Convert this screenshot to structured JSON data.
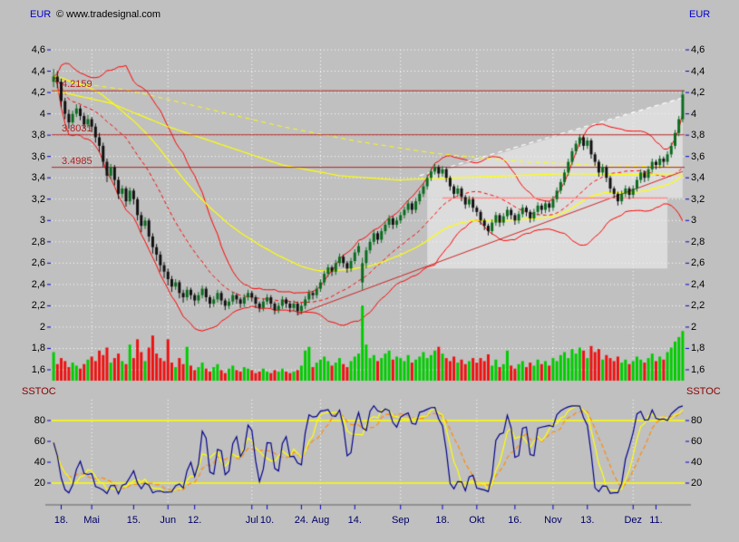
{
  "header": {
    "left_axis_title": "EUR",
    "copyright": "© www.tradesignal.com",
    "right_axis_title": "EUR"
  },
  "stoch_panel": {
    "left_title": "SSTOC",
    "right_title": "SSTOC"
  },
  "colors": {
    "background": "#c0c0c0",
    "grid": "#ffffff",
    "candle_up": "#0a6b1e",
    "candle_down": "#101010",
    "volume_up": "#00cc00",
    "volume_down": "#ee1111",
    "bollinger": "#ff0000",
    "ma_yellow": "#ffff00",
    "level": "#b22222",
    "level_label": "#b22222",
    "trendline": "#cc2222",
    "channel": "#ff8888",
    "stoch_k": "#00008b",
    "stoch_slow": "#ff8c00",
    "axis_text": "#000066",
    "axis_tick": "#0000cc",
    "text": "#000000",
    "zone": "rgba(235,235,235,0.65)"
  },
  "chart_data": {
    "type": "candlestick",
    "currency": "EUR",
    "price_axis": {
      "min": 1.6,
      "max": 4.6,
      "ticks": [
        {
          "v": 4.6,
          "label": "4,6"
        },
        {
          "v": 4.4,
          "label": "4,4"
        },
        {
          "v": 4.2,
          "label": "4,2"
        },
        {
          "v": 4.0,
          "label": "4"
        },
        {
          "v": 3.8,
          "label": "3,8"
        },
        {
          "v": 3.6,
          "label": "3,6"
        },
        {
          "v": 3.4,
          "label": "3,4"
        },
        {
          "v": 3.2,
          "label": "3,2"
        },
        {
          "v": 3.0,
          "label": "3"
        },
        {
          "v": 2.8,
          "label": "2,8"
        },
        {
          "v": 2.6,
          "label": "2,6"
        },
        {
          "v": 2.4,
          "label": "2,4"
        },
        {
          "v": 2.2,
          "label": "2,2"
        },
        {
          "v": 2.0,
          "label": "2"
        },
        {
          "v": 1.8,
          "label": "1,8"
        },
        {
          "v": 1.6,
          "label": "1,6"
        }
      ]
    },
    "x_axis": {
      "labels": [
        {
          "text": "18.",
          "i": 2
        },
        {
          "text": "Mai",
          "i": 10
        },
        {
          "text": "15.",
          "i": 21
        },
        {
          "text": "Jun",
          "i": 30
        },
        {
          "text": "12.",
          "i": 37
        },
        {
          "text": "Jul",
          "i": 52
        },
        {
          "text": "10.",
          "i": 56
        },
        {
          "text": "24.",
          "i": 65
        },
        {
          "text": "Aug",
          "i": 70
        },
        {
          "text": "14.",
          "i": 79
        },
        {
          "text": "Sep",
          "i": 91
        },
        {
          "text": "18.",
          "i": 102
        },
        {
          "text": "Okt",
          "i": 111
        },
        {
          "text": "16.",
          "i": 121
        },
        {
          "text": "Nov",
          "i": 131
        },
        {
          "text": "13.",
          "i": 140
        },
        {
          "text": "Dez",
          "i": 152
        },
        {
          "text": "11.",
          "i": 158
        }
      ]
    },
    "months_grid": [
      10,
      30,
      52,
      70,
      91,
      111,
      131,
      152
    ],
    "levels": [
      {
        "value": 4.2159,
        "label": "4.2159"
      },
      {
        "value": 3.8031,
        "label": "3.8031"
      },
      {
        "value": 3.4985,
        "label": "3.4985"
      }
    ],
    "candles": [
      [
        4.3,
        4.42,
        4.25,
        4.35
      ],
      [
        4.35,
        4.4,
        4.24,
        4.3
      ],
      [
        4.3,
        4.33,
        4.06,
        4.12
      ],
      [
        4.12,
        4.15,
        3.95,
        4.0
      ],
      [
        4.0,
        4.04,
        3.86,
        3.92
      ],
      [
        3.92,
        4.03,
        3.9,
        4.0
      ],
      [
        4.0,
        4.09,
        3.97,
        4.05
      ],
      [
        4.05,
        4.08,
        3.94,
        3.98
      ],
      [
        3.98,
        4.01,
        3.86,
        3.9
      ],
      [
        3.9,
        3.99,
        3.87,
        3.95
      ],
      [
        3.95,
        3.97,
        3.83,
        3.88
      ],
      [
        3.88,
        3.91,
        3.73,
        3.78
      ],
      [
        3.78,
        3.82,
        3.64,
        3.7
      ],
      [
        3.7,
        3.73,
        3.5,
        3.55
      ],
      [
        3.55,
        3.58,
        3.36,
        3.42
      ],
      [
        3.42,
        3.53,
        3.39,
        3.5
      ],
      [
        3.5,
        3.52,
        3.33,
        3.38
      ],
      [
        3.38,
        3.41,
        3.2,
        3.25
      ],
      [
        3.25,
        3.33,
        3.21,
        3.3
      ],
      [
        3.3,
        3.32,
        3.13,
        3.18
      ],
      [
        3.18,
        3.31,
        3.15,
        3.28
      ],
      [
        3.28,
        3.3,
        3.15,
        3.2
      ],
      [
        3.2,
        3.22,
        3.0,
        3.05
      ],
      [
        3.05,
        3.08,
        2.89,
        2.95
      ],
      [
        2.95,
        3.03,
        2.92,
        3.0
      ],
      [
        3.0,
        3.02,
        2.8,
        2.85
      ],
      [
        2.85,
        2.88,
        2.69,
        2.75
      ],
      [
        2.75,
        2.78,
        2.62,
        2.68
      ],
      [
        2.68,
        2.71,
        2.52,
        2.58
      ],
      [
        2.58,
        2.61,
        2.46,
        2.52
      ],
      [
        2.52,
        2.55,
        2.39,
        2.45
      ],
      [
        2.45,
        2.48,
        2.33,
        2.38
      ],
      [
        2.38,
        2.45,
        2.35,
        2.42
      ],
      [
        2.42,
        2.44,
        2.27,
        2.32
      ],
      [
        2.32,
        2.35,
        2.23,
        2.28
      ],
      [
        2.28,
        2.38,
        2.25,
        2.35
      ],
      [
        2.35,
        2.37,
        2.26,
        2.3
      ],
      [
        2.3,
        2.32,
        2.2,
        2.25
      ],
      [
        2.25,
        2.33,
        2.22,
        2.3
      ],
      [
        2.3,
        2.39,
        2.27,
        2.36
      ],
      [
        2.36,
        2.38,
        2.24,
        2.28
      ],
      [
        2.28,
        2.3,
        2.18,
        2.22
      ],
      [
        2.22,
        2.29,
        2.19,
        2.26
      ],
      [
        2.26,
        2.35,
        2.23,
        2.32
      ],
      [
        2.32,
        2.34,
        2.21,
        2.25
      ],
      [
        2.25,
        2.27,
        2.16,
        2.2
      ],
      [
        2.2,
        2.27,
        2.17,
        2.24
      ],
      [
        2.24,
        2.33,
        2.21,
        2.3
      ],
      [
        2.3,
        2.32,
        2.22,
        2.26
      ],
      [
        2.26,
        2.28,
        2.18,
        2.22
      ],
      [
        2.22,
        2.31,
        2.19,
        2.28
      ],
      [
        2.28,
        2.35,
        2.25,
        2.32
      ],
      [
        2.32,
        2.34,
        2.24,
        2.28
      ],
      [
        2.28,
        2.3,
        2.18,
        2.22
      ],
      [
        2.22,
        2.24,
        2.14,
        2.18
      ],
      [
        2.18,
        2.27,
        2.15,
        2.24
      ],
      [
        2.24,
        2.31,
        2.21,
        2.28
      ],
      [
        2.28,
        2.3,
        2.18,
        2.22
      ],
      [
        2.22,
        2.24,
        2.12,
        2.16
      ],
      [
        2.16,
        2.23,
        2.13,
        2.2
      ],
      [
        2.2,
        2.29,
        2.17,
        2.26
      ],
      [
        2.26,
        2.28,
        2.18,
        2.22
      ],
      [
        2.22,
        2.24,
        2.14,
        2.18
      ],
      [
        2.18,
        2.25,
        2.15,
        2.22
      ],
      [
        2.22,
        2.24,
        2.11,
        2.15
      ],
      [
        2.15,
        2.23,
        2.12,
        2.2
      ],
      [
        2.2,
        2.29,
        2.17,
        2.26
      ],
      [
        2.26,
        2.35,
        2.23,
        2.32
      ],
      [
        2.32,
        2.34,
        2.26,
        2.3
      ],
      [
        2.3,
        2.39,
        2.27,
        2.36
      ],
      [
        2.36,
        2.45,
        2.33,
        2.42
      ],
      [
        2.42,
        2.53,
        2.39,
        2.5
      ],
      [
        2.5,
        2.59,
        2.47,
        2.56
      ],
      [
        2.56,
        2.58,
        2.48,
        2.52
      ],
      [
        2.52,
        2.63,
        2.49,
        2.6
      ],
      [
        2.6,
        2.69,
        2.57,
        2.66
      ],
      [
        2.66,
        2.68,
        2.56,
        2.6
      ],
      [
        2.6,
        2.62,
        2.51,
        2.55
      ],
      [
        2.55,
        2.65,
        2.52,
        2.62
      ],
      [
        2.62,
        2.73,
        2.59,
        2.7
      ],
      [
        2.7,
        2.79,
        2.67,
        2.76
      ],
      [
        2.42,
        2.65,
        2.35,
        2.6
      ],
      [
        2.6,
        2.75,
        2.55,
        2.72
      ],
      [
        2.72,
        2.83,
        2.69,
        2.8
      ],
      [
        2.8,
        2.91,
        2.77,
        2.88
      ],
      [
        2.88,
        2.9,
        2.78,
        2.82
      ],
      [
        2.82,
        2.93,
        2.79,
        2.9
      ],
      [
        2.9,
        2.99,
        2.87,
        2.96
      ],
      [
        2.96,
        3.05,
        2.93,
        3.02
      ],
      [
        3.02,
        3.04,
        2.92,
        2.96
      ],
      [
        2.96,
        3.03,
        2.93,
        3.0
      ],
      [
        3.0,
        3.08,
        2.97,
        3.05
      ],
      [
        3.05,
        3.13,
        3.02,
        3.1
      ],
      [
        3.1,
        3.19,
        3.07,
        3.16
      ],
      [
        3.16,
        3.18,
        3.06,
        3.1
      ],
      [
        3.1,
        3.21,
        3.07,
        3.18
      ],
      [
        3.18,
        3.28,
        3.15,
        3.25
      ],
      [
        3.25,
        3.35,
        3.22,
        3.32
      ],
      [
        3.32,
        3.43,
        3.29,
        3.4
      ],
      [
        3.4,
        3.49,
        3.37,
        3.46
      ],
      [
        3.46,
        3.53,
        3.43,
        3.5
      ],
      [
        3.5,
        3.52,
        3.4,
        3.44
      ],
      [
        3.44,
        3.51,
        3.41,
        3.48
      ],
      [
        3.48,
        3.5,
        3.36,
        3.4
      ],
      [
        3.4,
        3.42,
        3.28,
        3.32
      ],
      [
        3.32,
        3.34,
        3.21,
        3.25
      ],
      [
        3.25,
        3.33,
        3.22,
        3.3
      ],
      [
        3.3,
        3.32,
        3.18,
        3.22
      ],
      [
        3.22,
        3.24,
        3.11,
        3.15
      ],
      [
        3.15,
        3.23,
        3.12,
        3.2
      ],
      [
        3.2,
        3.22,
        3.08,
        3.12
      ],
      [
        3.12,
        3.14,
        3.04,
        3.08
      ],
      [
        3.08,
        3.1,
        2.96,
        3.0
      ],
      [
        3.0,
        3.02,
        2.91,
        2.95
      ],
      [
        2.95,
        2.97,
        2.86,
        2.9
      ],
      [
        2.9,
        3.01,
        2.87,
        2.98
      ],
      [
        2.98,
        3.08,
        2.95,
        3.05
      ],
      [
        3.05,
        3.07,
        2.94,
        2.98
      ],
      [
        2.98,
        3.07,
        2.95,
        3.04
      ],
      [
        3.04,
        3.13,
        3.01,
        3.1
      ],
      [
        3.1,
        3.12,
        3.01,
        3.05
      ],
      [
        3.05,
        3.07,
        2.96,
        3.0
      ],
      [
        3.0,
        3.09,
        2.97,
        3.06
      ],
      [
        3.06,
        3.15,
        3.03,
        3.12
      ],
      [
        3.12,
        3.14,
        3.04,
        3.08
      ],
      [
        3.08,
        3.1,
        2.98,
        3.02
      ],
      [
        3.02,
        3.11,
        2.99,
        3.08
      ],
      [
        3.08,
        3.17,
        3.05,
        3.14
      ],
      [
        3.14,
        3.16,
        3.06,
        3.1
      ],
      [
        3.1,
        3.19,
        3.07,
        3.16
      ],
      [
        3.16,
        3.18,
        3.08,
        3.12
      ],
      [
        3.12,
        3.23,
        3.09,
        3.2
      ],
      [
        3.2,
        3.31,
        3.17,
        3.28
      ],
      [
        3.28,
        3.39,
        3.25,
        3.36
      ],
      [
        3.36,
        3.48,
        3.33,
        3.45
      ],
      [
        3.45,
        3.58,
        3.42,
        3.55
      ],
      [
        3.55,
        3.68,
        3.52,
        3.65
      ],
      [
        3.65,
        3.75,
        3.62,
        3.72
      ],
      [
        3.72,
        3.81,
        3.69,
        3.78
      ],
      [
        3.78,
        3.8,
        3.66,
        3.7
      ],
      [
        3.7,
        3.78,
        3.67,
        3.75
      ],
      [
        3.75,
        3.77,
        3.58,
        3.62
      ],
      [
        3.62,
        3.64,
        3.51,
        3.55
      ],
      [
        3.55,
        3.57,
        3.41,
        3.45
      ],
      [
        3.45,
        3.53,
        3.42,
        3.5
      ],
      [
        3.5,
        3.52,
        3.36,
        3.4
      ],
      [
        3.4,
        3.42,
        3.26,
        3.3
      ],
      [
        3.3,
        3.32,
        3.21,
        3.25
      ],
      [
        3.25,
        3.27,
        3.14,
        3.18
      ],
      [
        3.18,
        3.28,
        3.15,
        3.25
      ],
      [
        3.25,
        3.33,
        3.22,
        3.3
      ],
      [
        3.3,
        3.32,
        3.2,
        3.24
      ],
      [
        3.24,
        3.33,
        3.21,
        3.3
      ],
      [
        3.3,
        3.41,
        3.27,
        3.38
      ],
      [
        3.38,
        3.48,
        3.35,
        3.45
      ],
      [
        3.45,
        3.47,
        3.36,
        3.4
      ],
      [
        3.4,
        3.51,
        3.37,
        3.48
      ],
      [
        3.48,
        3.58,
        3.45,
        3.55
      ],
      [
        3.55,
        3.57,
        3.48,
        3.52
      ],
      [
        3.52,
        3.61,
        3.49,
        3.58
      ],
      [
        3.58,
        3.6,
        3.5,
        3.55
      ],
      [
        3.55,
        3.65,
        3.52,
        3.62
      ],
      [
        3.62,
        3.73,
        3.59,
        3.7
      ],
      [
        3.7,
        3.85,
        3.67,
        3.82
      ],
      [
        3.82,
        3.98,
        3.79,
        3.95
      ],
      [
        3.95,
        4.22,
        3.92,
        4.18
      ]
    ],
    "volume": [
      38,
      22,
      30,
      26,
      18,
      24,
      20,
      16,
      22,
      28,
      32,
      26,
      40,
      34,
      44,
      24,
      30,
      36,
      26,
      22,
      48,
      30,
      55,
      38,
      26,
      44,
      60,
      36,
      30,
      26,
      55,
      24,
      18,
      30,
      22,
      45,
      20,
      14,
      18,
      24,
      16,
      12,
      18,
      22,
      14,
      10,
      16,
      20,
      14,
      12,
      18,
      16,
      14,
      10,
      12,
      16,
      12,
      10,
      14,
      12,
      16,
      12,
      10,
      12,
      14,
      20,
      40,
      45,
      18,
      24,
      28,
      32,
      26,
      20,
      24,
      30,
      22,
      18,
      26,
      32,
      36,
      100,
      48,
      30,
      34,
      26,
      30,
      36,
      40,
      28,
      32,
      30,
      26,
      34,
      24,
      28,
      32,
      38,
      30,
      34,
      40,
      45,
      36,
      30,
      26,
      32,
      24,
      28,
      22,
      26,
      30,
      24,
      30,
      26,
      35,
      20,
      28,
      18,
      22,
      40,
      20,
      16,
      22,
      26,
      18,
      24,
      20,
      28,
      22,
      26,
      20,
      30,
      26,
      34,
      38,
      30,
      42,
      36,
      44,
      40,
      30,
      46,
      38,
      42,
      28,
      34,
      30,
      26,
      32,
      24,
      28,
      22,
      26,
      32,
      28,
      24,
      30,
      36,
      26,
      32,
      28,
      38,
      44,
      52,
      58,
      66
    ],
    "overlays": {
      "bollinger": {
        "period": 20,
        "stdev": 2
      },
      "ema_period": 50,
      "ma_slow_solid": [
        [
          0,
          4.22
        ],
        [
          15,
          4.1
        ],
        [
          30,
          3.88
        ],
        [
          45,
          3.7
        ],
        [
          60,
          3.52
        ],
        [
          75,
          3.42
        ],
        [
          90,
          3.38
        ],
        [
          105,
          3.4
        ],
        [
          120,
          3.42
        ],
        [
          135,
          3.44
        ],
        [
          150,
          3.43
        ],
        [
          165,
          3.44
        ]
      ],
      "ma_slow_dashed": [
        [
          0,
          4.32
        ],
        [
          20,
          4.22
        ],
        [
          40,
          4.05
        ],
        [
          60,
          3.88
        ],
        [
          80,
          3.74
        ],
        [
          100,
          3.63
        ],
        [
          120,
          3.56
        ],
        [
          140,
          3.52
        ],
        [
          165,
          3.5
        ]
      ],
      "trendline": [
        [
          64,
          2.12
        ],
        [
          165,
          3.46
        ]
      ],
      "white_dashed": [
        [
          96,
          3.42
        ],
        [
          165,
          4.15
        ]
      ],
      "pink_line": {
        "value": 3.21,
        "from": 102,
        "to": 161
      },
      "zones": [
        {
          "type": "rect",
          "i0": 98,
          "i1": 161,
          "p0": 2.55,
          "p1": 3.21
        },
        {
          "type": "quad",
          "pts": [
            [
              98,
              3.42
            ],
            [
              165,
              4.15
            ],
            [
              165,
              3.21
            ],
            [
              98,
              3.21
            ]
          ]
        }
      ]
    },
    "stochastic": {
      "k_period": 5,
      "smooth_blue": 2,
      "smooth_yellow": 5,
      "smooth_orange": 9,
      "lines": [
        20,
        80
      ],
      "ticks": [
        {
          "v": 80,
          "label": "80"
        },
        {
          "v": 60,
          "label": "60"
        },
        {
          "v": 40,
          "label": "40"
        },
        {
          "v": 20,
          "label": "20"
        }
      ]
    }
  }
}
